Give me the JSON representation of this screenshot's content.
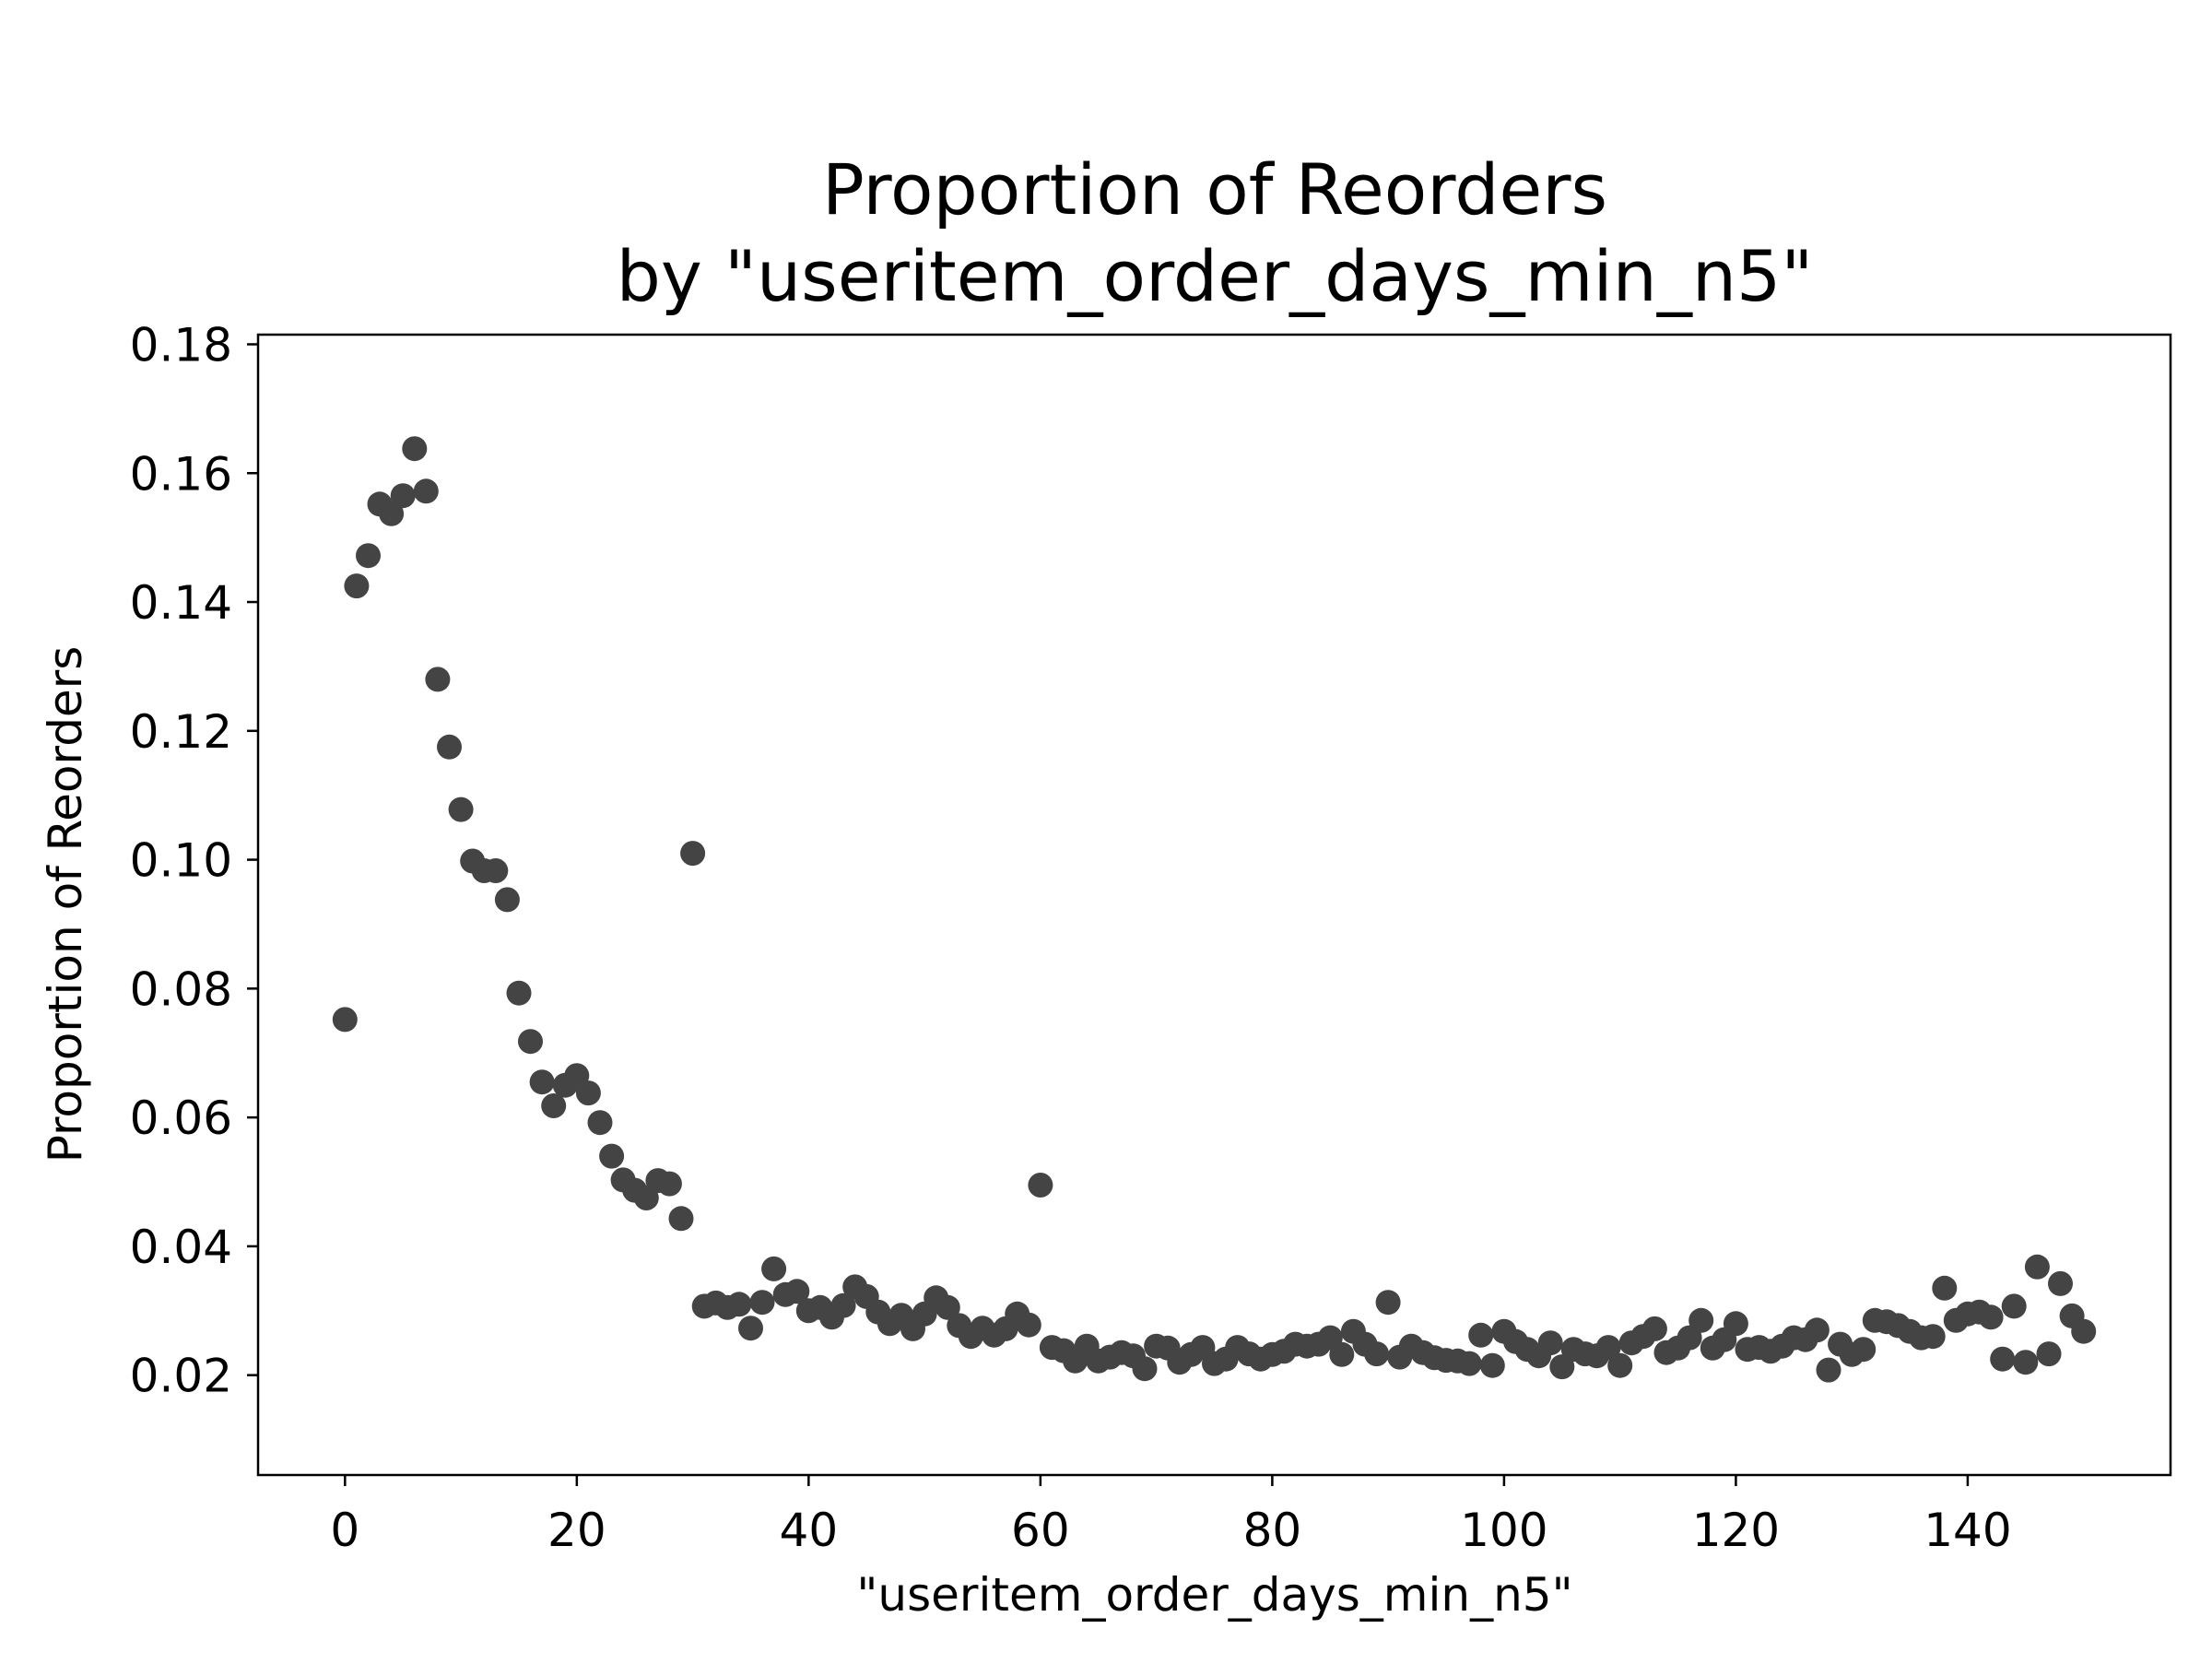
{
  "chart_data": {
    "type": "scatter",
    "title_line1": "Proportion of Reorders",
    "title_line2": "by \"useritem_order_days_min_n5\"",
    "xlabel": "\"useritem_order_days_min_n5\"",
    "ylabel": "Proportion of Reorders",
    "xlim": [
      -7.5,
      157.5
    ],
    "ylim": [
      0.0045,
      0.1815
    ],
    "x_ticks": [
      0,
      20,
      40,
      60,
      80,
      100,
      120,
      140
    ],
    "x_tick_labels": [
      "0",
      "20",
      "40",
      "60",
      "80",
      "100",
      "120",
      "140"
    ],
    "y_ticks": [
      0.02,
      0.04,
      0.06,
      0.08,
      0.1,
      0.12,
      0.14,
      0.16,
      0.18
    ],
    "y_tick_labels": [
      "0.02",
      "0.04",
      "0.06",
      "0.08",
      "0.10",
      "0.12",
      "0.14",
      "0.16",
      "0.18"
    ],
    "grid": false,
    "marker_color": "#444444",
    "x": [
      0,
      1,
      2,
      3,
      4,
      5,
      6,
      7,
      8,
      9,
      10,
      11,
      12,
      13,
      14,
      15,
      16,
      17,
      18,
      19,
      20,
      21,
      22,
      23,
      24,
      25,
      26,
      27,
      28,
      29,
      30,
      31,
      32,
      33,
      34,
      35,
      36,
      37,
      38,
      39,
      40,
      41,
      42,
      43,
      44,
      45,
      46,
      47,
      48,
      49,
      50,
      51,
      52,
      53,
      54,
      55,
      56,
      57,
      58,
      59,
      60,
      61,
      62,
      63,
      64,
      65,
      66,
      67,
      68,
      69,
      70,
      71,
      72,
      73,
      74,
      75,
      76,
      77,
      78,
      79,
      80,
      81,
      82,
      83,
      84,
      85,
      86,
      87,
      88,
      89,
      90,
      91,
      92,
      93,
      94,
      95,
      96,
      97,
      98,
      99,
      100,
      101,
      102,
      103,
      104,
      105,
      106,
      107,
      108,
      109,
      110,
      111,
      112,
      113,
      114,
      115,
      116,
      117,
      118,
      119,
      120,
      121,
      122,
      123,
      124,
      125,
      126,
      127,
      128,
      129,
      130,
      131,
      132,
      133,
      134,
      135,
      136,
      137,
      138,
      139,
      140,
      141,
      142,
      143,
      144,
      145,
      146,
      147,
      148,
      149,
      150
    ],
    "y": [
      0.0752,
      0.1425,
      0.1472,
      0.1552,
      0.1537,
      0.1565,
      0.1638,
      0.1572,
      0.128,
      0.1175,
      0.1078,
      0.0998,
      0.0983,
      0.0983,
      0.0938,
      0.0793,
      0.0718,
      0.0655,
      0.0618,
      0.065,
      0.0665,
      0.0638,
      0.0592,
      0.054,
      0.0503,
      0.0487,
      0.0475,
      0.0502,
      0.0497,
      0.0443,
      0.101,
      0.0307,
      0.0312,
      0.0305,
      0.031,
      0.0273,
      0.0313,
      0.0365,
      0.0325,
      0.033,
      0.03,
      0.0305,
      0.029,
      0.0308,
      0.0337,
      0.0322,
      0.0298,
      0.028,
      0.0293,
      0.0272,
      0.0295,
      0.032,
      0.0305,
      0.0277,
      0.026,
      0.0273,
      0.0262,
      0.0272,
      0.0295,
      0.0278,
      0.0495,
      0.0243,
      0.0238,
      0.0222,
      0.0245,
      0.0222,
      0.0228,
      0.0235,
      0.023,
      0.021,
      0.0245,
      0.0242,
      0.022,
      0.0232,
      0.0243,
      0.0218,
      0.0225,
      0.0243,
      0.0233,
      0.0225,
      0.0232,
      0.0237,
      0.0248,
      0.0245,
      0.0248,
      0.0258,
      0.0232,
      0.0268,
      0.0248,
      0.0233,
      0.0313,
      0.0228,
      0.0245,
      0.0235,
      0.0227,
      0.0223,
      0.0222,
      0.0218,
      0.0262,
      0.0215,
      0.0268,
      0.0252,
      0.024,
      0.023,
      0.025,
      0.0213,
      0.024,
      0.0233,
      0.023,
      0.0243,
      0.0215,
      0.025,
      0.026,
      0.0272,
      0.0235,
      0.0242,
      0.0258,
      0.0285,
      0.0242,
      0.0255,
      0.028,
      0.024,
      0.0243,
      0.0237,
      0.0245,
      0.0258,
      0.0255,
      0.027,
      0.0208,
      0.0248,
      0.0232,
      0.024,
      0.0285,
      0.0283,
      0.0277,
      0.0268,
      0.0258,
      0.026,
      0.0335,
      0.0285,
      0.0295,
      0.0298,
      0.029,
      0.0225,
      0.0307,
      0.022,
      0.0368,
      0.0233,
      0.0342,
      0.0292,
      0.0268
    ]
  }
}
